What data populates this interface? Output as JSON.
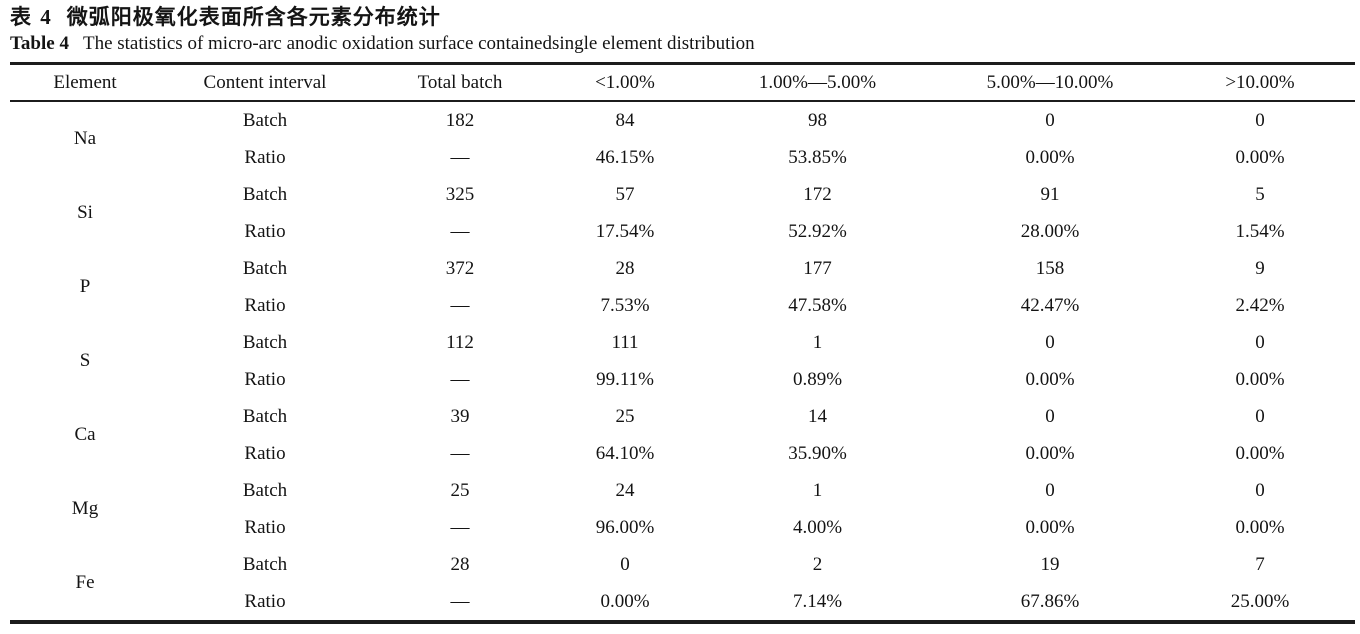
{
  "title_zh": {
    "label": "表 4",
    "text": "微弧阳极氧化表面所含各元素分布统计"
  },
  "title_en": {
    "label": "Table 4",
    "text": "The statistics of micro-arc anodic oxidation surface containedsingle element distribution"
  },
  "table": {
    "headers": [
      "Element",
      "Content interval",
      "Total batch",
      "<1.00%",
      "1.00%—5.00%",
      "5.00%—10.00%",
      ">10.00%"
    ],
    "interval_labels": {
      "batch": "Batch",
      "ratio": "Ratio"
    },
    "no_value_dash": "—",
    "rows": [
      {
        "element": "Na",
        "batch": [
          "182",
          "84",
          "98",
          "0",
          "0"
        ],
        "ratio": [
          "—",
          "46.15%",
          "53.85%",
          "0.00%",
          "0.00%"
        ]
      },
      {
        "element": "Si",
        "batch": [
          "325",
          "57",
          "172",
          "91",
          "5"
        ],
        "ratio": [
          "—",
          "17.54%",
          "52.92%",
          "28.00%",
          "1.54%"
        ]
      },
      {
        "element": "P",
        "batch": [
          "372",
          "28",
          "177",
          "158",
          "9"
        ],
        "ratio": [
          "—",
          "7.53%",
          "47.58%",
          "42.47%",
          "2.42%"
        ]
      },
      {
        "element": "S",
        "batch": [
          "112",
          "111",
          "1",
          "0",
          "0"
        ],
        "ratio": [
          "—",
          "99.11%",
          "0.89%",
          "0.00%",
          "0.00%"
        ]
      },
      {
        "element": "Ca",
        "batch": [
          "39",
          "25",
          "14",
          "0",
          "0"
        ],
        "ratio": [
          "—",
          "64.10%",
          "35.90%",
          "0.00%",
          "0.00%"
        ]
      },
      {
        "element": "Mg",
        "batch": [
          "25",
          "24",
          "1",
          "0",
          "0"
        ],
        "ratio": [
          "—",
          "96.00%",
          "4.00%",
          "0.00%",
          "0.00%"
        ]
      },
      {
        "element": "Fe",
        "batch": [
          "28",
          "0",
          "2",
          "19",
          "7"
        ],
        "ratio": [
          "—",
          "0.00%",
          "7.14%",
          "67.86%",
          "25.00%"
        ]
      }
    ]
  }
}
